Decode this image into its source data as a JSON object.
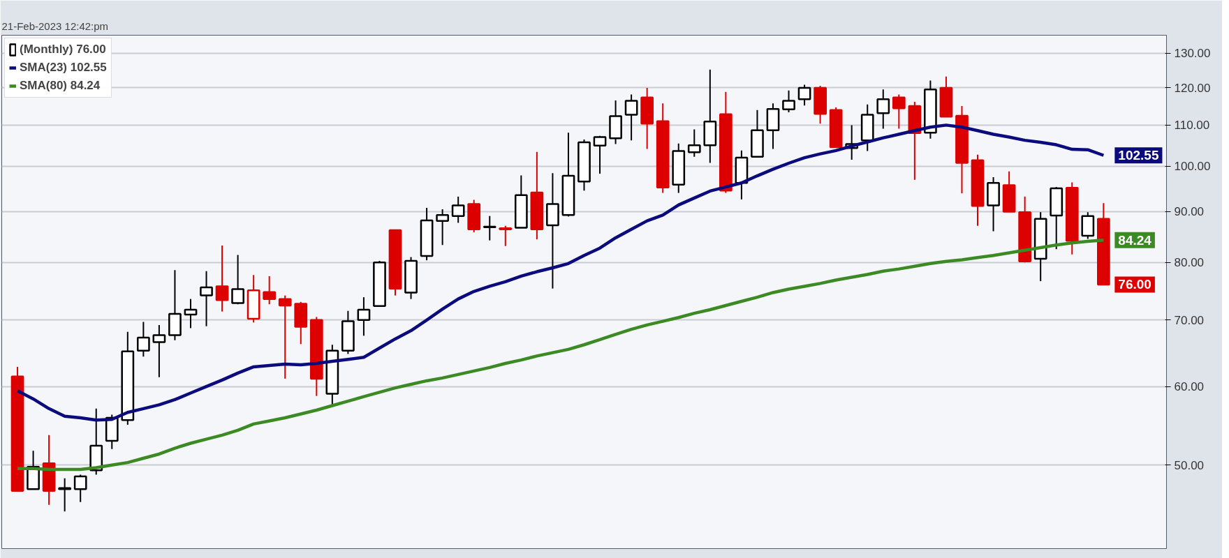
{
  "chart_data": {
    "type": "candlestick",
    "subtitle": "21-Feb-2023 12:42:pm",
    "categories": [
      null,
      null,
      null,
      null,
      null,
      null,
      null,
      null,
      null,
      null,
      null,
      null,
      null,
      null,
      null,
      null,
      null,
      null,
      null,
      null,
      null,
      null,
      null,
      null,
      null,
      null,
      null,
      null,
      null,
      null,
      null,
      null,
      null,
      null,
      null,
      null,
      null,
      null,
      null,
      null,
      null,
      null,
      null,
      null,
      null,
      null,
      null,
      null,
      null,
      null,
      null,
      null,
      null,
      null,
      null,
      null,
      null,
      null,
      null,
      null,
      null,
      null,
      null,
      null,
      null,
      null,
      null,
      null,
      null,
      null
    ],
    "series": [
      {
        "type": "candlestick",
        "name": "(Monthly) 76.00",
        "color": "#000000",
        "value_labels": [
          null,
          null,
          null,
          null,
          null,
          null,
          null,
          null,
          null,
          null,
          null,
          null,
          null,
          null,
          null,
          null,
          null,
          null,
          null,
          null,
          null,
          null,
          null,
          null,
          null,
          null,
          null,
          null,
          null,
          null,
          null,
          null,
          null,
          null,
          null,
          null,
          null,
          null,
          null,
          null,
          null,
          null,
          null,
          null,
          null,
          null,
          null,
          null,
          null,
          null,
          null,
          null,
          null,
          null,
          null,
          null,
          null,
          null,
          null,
          null,
          null,
          null,
          null,
          null,
          null,
          null,
          null,
          null,
          null,
          "76.00"
        ],
        "ohlc": [
          [
            61.4,
            62.8,
            47.0,
            47.1
          ],
          [
            47.3,
            51.7,
            47.3,
            49.8
          ],
          [
            50.2,
            53.6,
            45.6,
            47.1
          ],
          [
            47.3,
            48.5,
            44.9,
            47.4
          ],
          [
            47.3,
            48.9,
            45.9,
            48.7
          ],
          [
            49.4,
            57.0,
            48.9,
            52.3
          ],
          [
            52.9,
            56.2,
            51.9,
            55.8
          ],
          [
            55.5,
            68.1,
            54.9,
            65.1
          ],
          [
            65.2,
            69.7,
            64.3,
            67.2
          ],
          [
            66.5,
            69.2,
            61.3,
            67.6
          ],
          [
            67.6,
            78.6,
            66.8,
            71.0
          ],
          [
            70.9,
            73.5,
            68.7,
            71.7
          ],
          [
            74.1,
            78.4,
            69.0,
            75.5
          ],
          [
            75.7,
            83.2,
            71.4,
            73.3
          ],
          [
            72.8,
            81.4,
            72.6,
            75.2
          ],
          [
            70.2,
            77.7,
            69.6,
            75.0
          ],
          [
            74.7,
            77.5,
            72.6,
            73.5
          ],
          [
            73.5,
            74.1,
            61.1,
            72.4
          ],
          [
            72.7,
            73.0,
            66.2,
            68.9
          ],
          [
            70.0,
            70.5,
            58.7,
            61.1
          ],
          [
            59.0,
            66.1,
            57.5,
            65.2
          ],
          [
            65.2,
            71.5,
            64.7,
            69.8
          ],
          [
            70.0,
            73.8,
            67.5,
            71.7
          ],
          [
            72.3,
            80.3,
            72.3,
            80.0
          ],
          [
            86.2,
            86.2,
            74.1,
            75.3
          ],
          [
            74.6,
            81.0,
            73.5,
            80.3
          ],
          [
            81.2,
            90.8,
            80.4,
            88.2
          ],
          [
            88.1,
            90.5,
            83.3,
            89.3
          ],
          [
            89.1,
            93.2,
            87.7,
            91.3
          ],
          [
            91.6,
            92.5,
            85.8,
            86.4
          ],
          [
            86.8,
            89.1,
            84.2,
            86.9
          ],
          [
            86.6,
            87.1,
            83.1,
            86.4
          ],
          [
            86.7,
            97.9,
            86.7,
            93.5
          ],
          [
            94.1,
            103.4,
            84.4,
            86.4
          ],
          [
            87.2,
            98.4,
            75.3,
            91.6
          ],
          [
            89.3,
            108.1,
            89.0,
            97.8
          ],
          [
            96.5,
            106.4,
            94.5,
            105.7
          ],
          [
            104.9,
            107.3,
            98.3,
            107.0
          ],
          [
            106.7,
            116.5,
            105.3,
            112.3
          ],
          [
            112.7,
            118.1,
            106.2,
            116.4
          ],
          [
            117.3,
            119.9,
            104.1,
            110.4
          ],
          [
            111.0,
            115.7,
            94.0,
            95.2
          ],
          [
            95.8,
            105.4,
            94.0,
            103.6
          ],
          [
            103.3,
            108.9,
            102.2,
            105.0
          ],
          [
            105.0,
            125.1,
            100.8,
            110.9
          ],
          [
            112.8,
            118.8,
            94.0,
            94.5
          ],
          [
            96.2,
            103.7,
            92.6,
            102.0
          ],
          [
            102.2,
            113.9,
            102.2,
            108.7
          ],
          [
            108.7,
            115.7,
            104.1,
            114.2
          ],
          [
            114.1,
            119.2,
            113.3,
            116.4
          ],
          [
            116.8,
            120.8,
            115.1,
            119.9
          ],
          [
            119.9,
            120.5,
            110.4,
            112.9
          ],
          [
            113.9,
            114.6,
            104.5,
            104.5
          ],
          [
            104.3,
            110.0,
            101.5,
            105.3
          ],
          [
            106.2,
            115.4,
            103.6,
            112.7
          ],
          [
            113.1,
            119.5,
            109.1,
            116.8
          ],
          [
            117.3,
            118.1,
            109.1,
            114.4
          ],
          [
            115.0,
            116.1,
            96.9,
            108.0
          ],
          [
            108.1,
            122.0,
            106.6,
            119.5
          ],
          [
            119.9,
            123.1,
            112.2,
            112.2
          ],
          [
            112.4,
            115.0,
            93.9,
            100.8
          ],
          [
            101.4,
            102.7,
            87.1,
            91.2
          ],
          [
            91.3,
            97.5,
            86.0,
            96.2
          ],
          [
            95.7,
            98.8,
            90.0,
            90.0
          ],
          [
            89.9,
            93.2,
            80.0,
            80.2
          ],
          [
            80.7,
            89.9,
            76.6,
            88.5
          ],
          [
            89.2,
            95.3,
            82.5,
            95.0
          ],
          [
            95.1,
            96.3,
            81.5,
            84.1
          ],
          [
            85.1,
            89.9,
            84.5,
            89.1
          ],
          [
            88.5,
            91.8,
            76.0,
            76.0
          ]
        ],
        "colors": [
          "#dd0000",
          "#000000",
          "#dd0000",
          "#000000",
          "#000000",
          "#000000",
          "#000000",
          "#000000",
          "#000000",
          "#000000",
          "#000000",
          "#000000",
          "#000000",
          "#dd0000",
          "#000000",
          "#dd0000",
          "#dd0000",
          "#dd0000",
          "#dd0000",
          "#dd0000",
          "#000000",
          "#000000",
          "#000000",
          "#000000",
          "#dd0000",
          "#000000",
          "#000000",
          "#000000",
          "#000000",
          "#dd0000",
          "#000000",
          "#dd0000",
          "#000000",
          "#dd0000",
          "#000000",
          "#000000",
          "#000000",
          "#000000",
          "#000000",
          "#000000",
          "#dd0000",
          "#dd0000",
          "#000000",
          "#000000",
          "#000000",
          "#dd0000",
          "#000000",
          "#000000",
          "#000000",
          "#000000",
          "#000000",
          "#dd0000",
          "#dd0000",
          "#000000",
          "#000000",
          "#000000",
          "#dd0000",
          "#dd0000",
          "#000000",
          "#dd0000",
          "#dd0000",
          "#dd0000",
          "#000000",
          "#dd0000",
          "#dd0000",
          "#000000",
          "#000000",
          "#dd0000",
          "#000000",
          "#dd0000"
        ]
      },
      {
        "type": "line",
        "name": "SMA(23) 102.55",
        "color": "#0b0b7d",
        "value_labels": [
          null,
          null,
          null,
          null,
          null,
          null,
          null,
          null,
          null,
          null,
          null,
          null,
          null,
          null,
          null,
          null,
          null,
          null,
          null,
          null,
          null,
          null,
          null,
          null,
          null,
          null,
          null,
          null,
          null,
          null,
          null,
          null,
          null,
          null,
          null,
          null,
          null,
          null,
          null,
          null,
          null,
          null,
          null,
          null,
          null,
          null,
          null,
          null,
          null,
          null,
          null,
          null,
          null,
          null,
          null,
          null,
          null,
          null,
          null,
          null,
          null,
          null,
          null,
          null,
          null,
          null,
          null,
          null,
          null,
          "102.55"
        ],
        "values": [
          59.4,
          58.3,
          57.0,
          56.0,
          55.8,
          55.5,
          55.6,
          56.5,
          57.0,
          57.5,
          58.2,
          59.1,
          60.0,
          60.9,
          61.9,
          62.8,
          63.0,
          63.2,
          63.1,
          63.3,
          63.6,
          63.9,
          64.2,
          65.6,
          67.0,
          68.3,
          70.0,
          71.8,
          73.5,
          74.8,
          75.7,
          76.5,
          77.5,
          78.3,
          79.0,
          79.8,
          81.3,
          82.7,
          84.7,
          86.4,
          88.1,
          89.3,
          91.4,
          92.9,
          94.4,
          95.3,
          96.2,
          97.8,
          99.3,
          100.7,
          102.0,
          102.9,
          103.7,
          104.8,
          105.8,
          106.8,
          107.7,
          108.6,
          109.5,
          110.0,
          109.5,
          108.6,
          107.7,
          107.0,
          106.2,
          105.7,
          105.1,
          104.0,
          103.9,
          102.55
        ]
      },
      {
        "type": "line",
        "name": "SMA(80) 84.24",
        "color": "#3b8a23",
        "value_labels": [
          null,
          null,
          null,
          null,
          null,
          null,
          null,
          null,
          null,
          null,
          null,
          null,
          null,
          null,
          null,
          null,
          null,
          null,
          null,
          null,
          null,
          null,
          null,
          null,
          null,
          null,
          null,
          null,
          null,
          null,
          null,
          null,
          null,
          null,
          null,
          null,
          null,
          null,
          null,
          null,
          null,
          null,
          null,
          null,
          null,
          null,
          null,
          null,
          null,
          null,
          null,
          null,
          null,
          null,
          null,
          null,
          null,
          null,
          null,
          null,
          null,
          null,
          null,
          null,
          null,
          null,
          null,
          null,
          null,
          "84.24"
        ],
        "values": [
          49.6,
          49.6,
          49.5,
          49.5,
          49.5,
          49.7,
          50.0,
          50.3,
          50.8,
          51.3,
          52.0,
          52.6,
          53.1,
          53.6,
          54.2,
          55.0,
          55.4,
          55.8,
          56.3,
          56.8,
          57.4,
          58.0,
          58.6,
          59.2,
          59.8,
          60.3,
          60.8,
          61.2,
          61.7,
          62.2,
          62.7,
          63.3,
          63.8,
          64.4,
          64.9,
          65.4,
          66.1,
          66.9,
          67.7,
          68.5,
          69.2,
          69.8,
          70.4,
          71.1,
          71.7,
          72.4,
          73.1,
          73.8,
          74.6,
          75.2,
          75.7,
          76.2,
          76.8,
          77.3,
          77.8,
          78.4,
          78.8,
          79.3,
          79.8,
          80.2,
          80.5,
          80.9,
          81.3,
          81.8,
          82.3,
          82.8,
          83.3,
          83.7,
          84.0,
          84.24
        ]
      }
    ],
    "log": true,
    "ylim": [
      41.2,
      135.5
    ],
    "yticks": [
      {
        "value": 50,
        "label": "50.00"
      },
      {
        "value": 60,
        "label": "60.00"
      },
      {
        "value": 70,
        "label": "70.00"
      },
      {
        "value": 80,
        "label": "80.00"
      },
      {
        "value": 90,
        "label": "90.00"
      },
      {
        "value": 100,
        "label": "100.00"
      },
      {
        "value": 110,
        "label": "110.00"
      },
      {
        "value": 120,
        "label": "120.00"
      },
      {
        "value": 130,
        "label": "130.00"
      }
    ],
    "grid": "y",
    "legend": "top left",
    "tick_labels": "y"
  }
}
